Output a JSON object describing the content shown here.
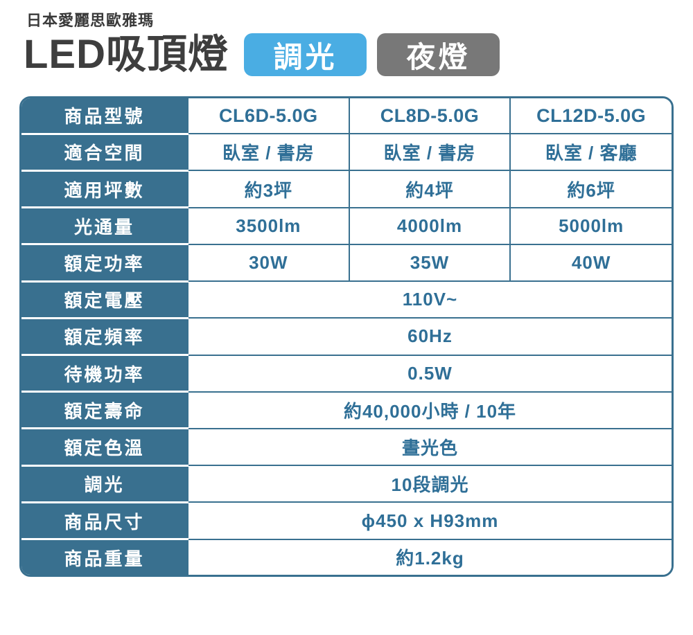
{
  "header": {
    "brand": "日本愛麗思歐雅瑪",
    "title": "LED吸頂燈",
    "badges": [
      {
        "label": "調光",
        "color": "#4aade3"
      },
      {
        "label": "夜燈",
        "color": "#787878"
      }
    ]
  },
  "colors": {
    "table_blue": "#39708f",
    "value_text_blue": "#2f6f97",
    "title_charcoal": "#3e3e3e"
  },
  "table": {
    "header_row": {
      "label": "商品型號",
      "models": [
        "CL6D-5.0G",
        "CL8D-5.0G",
        "CL12D-5.0G"
      ]
    },
    "rows": [
      {
        "label": "適合空間",
        "values": [
          "臥室 / 書房",
          "臥室 / 書房",
          "臥室 / 客廳"
        ]
      },
      {
        "label": "適用坪數",
        "values": [
          "約3坪",
          "約4坪",
          "約6坪"
        ]
      },
      {
        "label": "光通量",
        "values": [
          "3500lm",
          "4000lm",
          "5000lm"
        ]
      },
      {
        "label": "額定功率",
        "values": [
          "30W",
          "35W",
          "40W"
        ]
      },
      {
        "label": "額定電壓",
        "values": [
          "110V~"
        ]
      },
      {
        "label": "額定頻率",
        "values": [
          "60Hz"
        ]
      },
      {
        "label": "待機功率",
        "values": [
          "0.5W"
        ]
      },
      {
        "label": "額定壽命",
        "values": [
          "約40,000小時 / 10年"
        ]
      },
      {
        "label": "額定色溫",
        "values": [
          "晝光色"
        ]
      },
      {
        "label": "調光",
        "values": [
          "10段調光"
        ]
      },
      {
        "label": "商品尺寸",
        "values": [
          "ϕ450 x H93mm"
        ]
      },
      {
        "label": "商品重量",
        "values": [
          "約1.2kg"
        ]
      }
    ]
  }
}
